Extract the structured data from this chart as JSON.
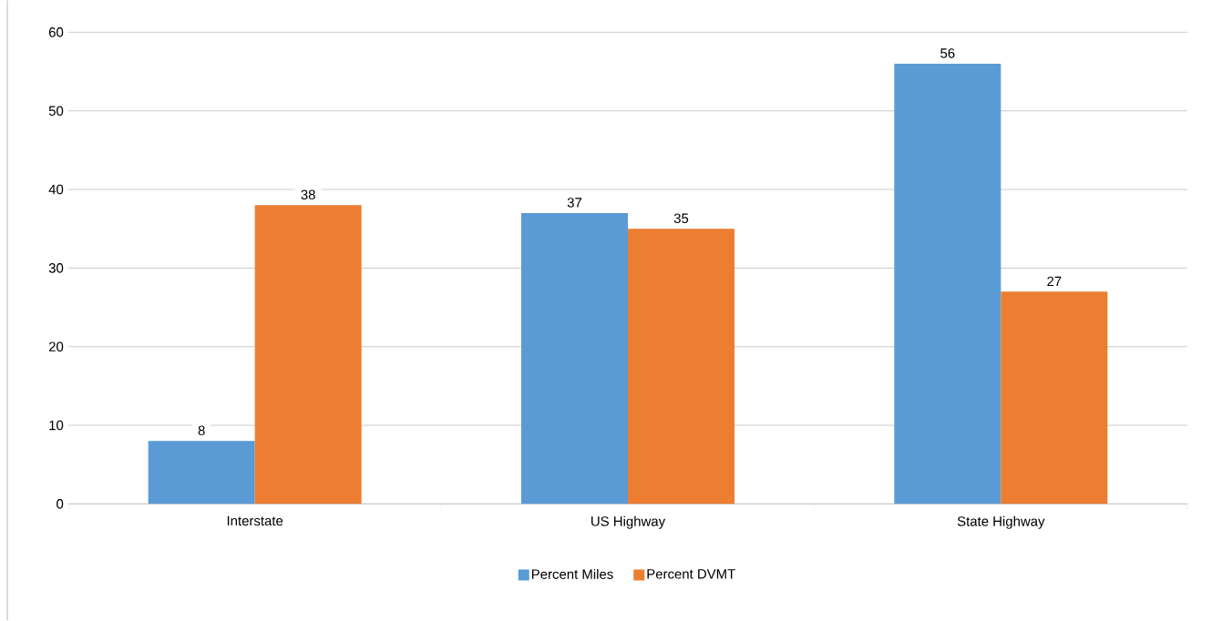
{
  "chart_data": {
    "type": "bar",
    "categories": [
      "Interstate",
      "US Highway",
      "State Highway"
    ],
    "series": [
      {
        "name": "Percent Miles",
        "color": "#5b9bd5",
        "values": [
          8,
          37,
          56
        ]
      },
      {
        "name": "Percent DVMT",
        "color": "#ed7d31",
        "values": [
          38,
          35,
          27
        ]
      }
    ],
    "ylim": [
      0,
      60
    ],
    "yticks": [
      0,
      10,
      20,
      30,
      40,
      50,
      60
    ],
    "grid": "y",
    "legend": "bottom",
    "data_labels": true
  }
}
